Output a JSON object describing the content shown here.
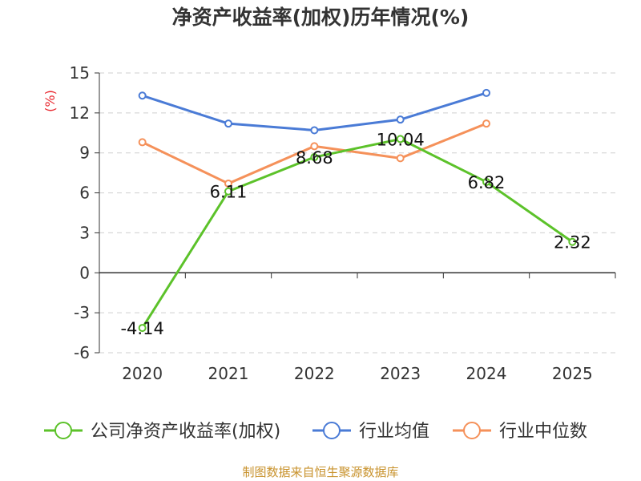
{
  "title": "净资产收益率(加权)历年情况(%)",
  "source": "制图数据来自恒生聚源数据库",
  "chart_data": {
    "type": "line",
    "title": "净资产收益率(加权)历年情况(%)",
    "ylabel": "(%)",
    "xlabel": "",
    "categories": [
      "2020",
      "2021",
      "2022",
      "2023",
      "2024",
      "2025"
    ],
    "yticks": [
      "15",
      "12",
      "9",
      "6",
      "3",
      "0",
      "-3",
      "-6"
    ],
    "ylim": [
      -6,
      15
    ],
    "grid": true,
    "legend_position": "bottom",
    "series": [
      {
        "name": "公司净资产收益率(加权)",
        "color": "#5cc22a",
        "values": [
          -4.14,
          6.11,
          8.68,
          10.04,
          6.82,
          2.32
        ],
        "labels": [
          "-4.14",
          "6.11",
          "8.68",
          "10.04",
          "6.82",
          "2.32"
        ]
      },
      {
        "name": "行业均值",
        "color": "#4a7bd6",
        "values": [
          13.3,
          11.2,
          10.7,
          11.5,
          13.5,
          null
        ],
        "labels": []
      },
      {
        "name": "行业中位数",
        "color": "#f5915a",
        "values": [
          9.8,
          6.7,
          9.5,
          8.6,
          11.2,
          null
        ],
        "labels": []
      }
    ]
  }
}
